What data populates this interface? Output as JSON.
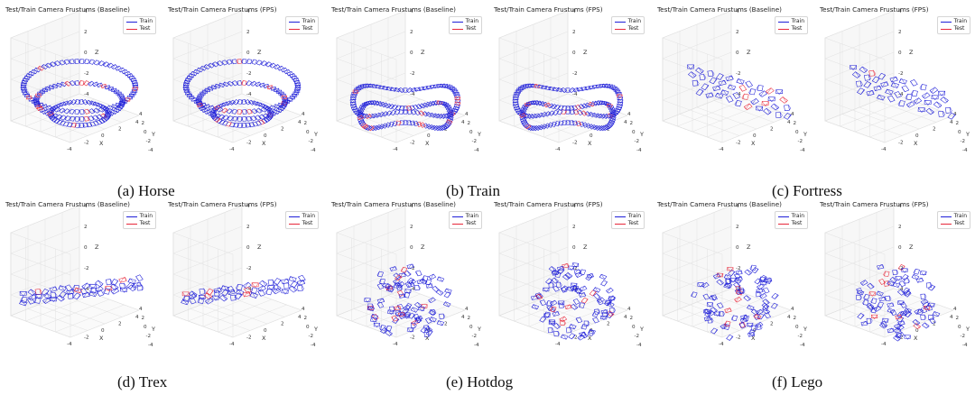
{
  "legend": {
    "train": "Train",
    "test": "Test"
  },
  "colors": {
    "train": "#1f1fd8",
    "test": "#e8283a",
    "axis": "#555555",
    "grid": "#e1e1e1",
    "pane": "#f4f4f4"
  },
  "axis_labels": {
    "x": "X",
    "y": "Y",
    "z": "Z"
  },
  "ticks": [
    "-4",
    "-2",
    "0",
    "2",
    "4"
  ],
  "panels": [
    {
      "caption": "(a) Horse",
      "baseline_title": "Test/Train Camera Frustums (Baseline)",
      "fps_title": "Test/Train Camera Frustums (FPS)"
    },
    {
      "caption": "(b) Train",
      "baseline_title": "Test/Train Camera Frustums (Baseline)",
      "fps_title": "Test/Train Camera Frustums (FPS)"
    },
    {
      "caption": "(c) Fortress",
      "baseline_title": "Test/Train Camera Frustums (Baseline)",
      "fps_title": "Test/Train Camera Frustums (FPS)"
    },
    {
      "caption": "(d) Trex",
      "baseline_title": "Test/Train Camera Frustums (Baseline)",
      "fps_title": "Test/Train Camera Frustums (FPS)"
    },
    {
      "caption": "(e) Hotdog",
      "baseline_title": "Test/Train Camera Frustums (Baseline)",
      "fps_title": "Test/Train Camera Frustums (FPS)"
    },
    {
      "caption": "(f) Lego",
      "baseline_title": "Test/Train Camera Frustums (Baseline)",
      "fps_title": "Test/Train Camera Frustums (FPS)"
    }
  ],
  "chart_data": {
    "type": "scatter",
    "series": [
      {
        "name": "Train"
      },
      {
        "name": "Test"
      }
    ],
    "xlim": [
      -4,
      4
    ],
    "ylim": [
      -4,
      4
    ],
    "zlim": [
      -4,
      4
    ],
    "grid": true,
    "legend_position": "top-right"
  }
}
